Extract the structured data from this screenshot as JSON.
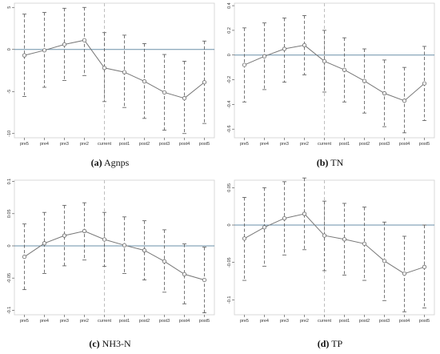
{
  "chart_data": [
    {
      "type": "line",
      "panel_letter": "(a)",
      "caption_text": "Agnps",
      "x": [
        "pre5",
        "pre4",
        "pre3",
        "pre2",
        "current",
        "post1",
        "post2",
        "post3",
        "post4",
        "post5"
      ],
      "values": [
        -0.7,
        -0.1,
        0.6,
        1.1,
        -2.2,
        -2.7,
        -3.8,
        -5.1,
        -5.8,
        -3.9
      ],
      "ci_low": [
        -5.6,
        -4.5,
        -3.7,
        -3.1,
        -6.2,
        -6.9,
        -8.2,
        -9.6,
        -10.0,
        -8.8
      ],
      "ci_high": [
        4.2,
        4.4,
        4.9,
        5.0,
        2.0,
        1.7,
        0.7,
        -0.6,
        -1.4,
        1.0
      ],
      "yticks": [
        5,
        0,
        -5,
        -10
      ],
      "ylim": [
        -10.5,
        5.5
      ],
      "reference_line": 0,
      "event_line": "current"
    },
    {
      "type": "line",
      "panel_letter": "(b)",
      "caption_text": "TN",
      "x": [
        "pre5",
        "pre4",
        "pre3",
        "pre2",
        "current",
        "post1",
        "post2",
        "post3",
        "post4",
        "post5"
      ],
      "values": [
        -0.08,
        -0.01,
        0.05,
        0.08,
        -0.05,
        -0.12,
        -0.21,
        -0.31,
        -0.37,
        -0.23
      ],
      "ci_low": [
        -0.38,
        -0.28,
        -0.22,
        -0.16,
        -0.3,
        -0.38,
        -0.47,
        -0.58,
        -0.63,
        -0.53
      ],
      "ci_high": [
        0.22,
        0.26,
        0.3,
        0.32,
        0.2,
        0.14,
        0.05,
        -0.04,
        -0.1,
        0.07
      ],
      "yticks": [
        0.4,
        0.2,
        0,
        -0.2,
        -0.4,
        -0.6
      ],
      "ylim": [
        -0.67,
        0.42
      ],
      "reference_line": 0,
      "event_line": "current"
    },
    {
      "type": "line",
      "panel_letter": "(c)",
      "caption_text": "NH3-N",
      "x": [
        "pre5",
        "pre4",
        "pre3",
        "pre2",
        "current",
        "post1",
        "post2",
        "post3",
        "post4",
        "post5"
      ],
      "values": [
        -0.017,
        0.004,
        0.016,
        0.023,
        0.01,
        0.001,
        -0.007,
        -0.024,
        -0.044,
        -0.053
      ],
      "ci_low": [
        -0.068,
        -0.043,
        -0.031,
        -0.022,
        -0.032,
        -0.043,
        -0.053,
        -0.072,
        -0.09,
        -0.104
      ],
      "ci_high": [
        0.034,
        0.052,
        0.063,
        0.067,
        0.052,
        0.045,
        0.039,
        0.025,
        0.003,
        -0.002
      ],
      "yticks": [
        0.1,
        0.05,
        0,
        -0.05,
        -0.1
      ],
      "ylim": [
        -0.107,
        0.102
      ],
      "reference_line": 0,
      "event_line": "current"
    },
    {
      "type": "line",
      "panel_letter": "(d)",
      "caption_text": "TP",
      "x": [
        "pre5",
        "pre4",
        "pre3",
        "pre2",
        "current",
        "post1",
        "post2",
        "post3",
        "post4",
        "post5"
      ],
      "values": [
        -0.018,
        -0.003,
        0.009,
        0.015,
        -0.014,
        -0.019,
        -0.025,
        -0.048,
        -0.065,
        -0.056
      ],
      "ci_low": [
        -0.074,
        -0.055,
        -0.04,
        -0.033,
        -0.061,
        -0.067,
        -0.074,
        -0.101,
        -0.116,
        -0.111
      ],
      "ci_high": [
        0.037,
        0.05,
        0.058,
        0.063,
        0.032,
        0.029,
        0.024,
        0.004,
        -0.015,
        0.0
      ],
      "yticks": [
        0.05,
        0,
        -0.05,
        -0.1
      ],
      "ylim": [
        -0.12,
        0.06
      ],
      "reference_line": 0,
      "event_line": "current"
    }
  ],
  "colors": {
    "line": "#777777",
    "ci": "#555555",
    "reference": "#6a8fa8",
    "event": "#b8b8b8",
    "frame": "#cfcfcf"
  }
}
